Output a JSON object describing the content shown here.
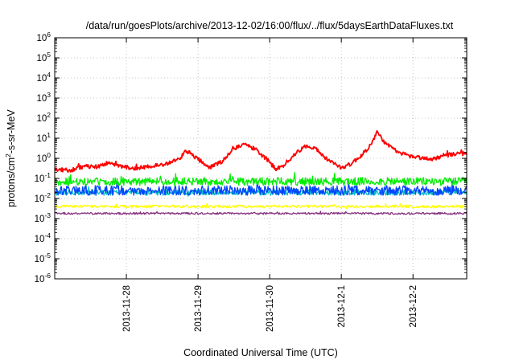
{
  "chart_data": {
    "type": "line",
    "title": "/data/run/goesPlots/archive/2013-12-02/16:00/flux/../flux/5daysEarthDataFluxes.txt",
    "xlabel": "Coordinated Universal Time (UTC)",
    "ylabel": {
      "base": "protons/cm",
      "sup": "2",
      "rest": "-s-sr-MeV"
    },
    "yscale": "log",
    "ylim": [
      1e-06,
      1000000.0
    ],
    "xlim": [
      "2013-11-27 00:00",
      "2013-12-02 18:00"
    ],
    "grid": true,
    "legend": "none",
    "y_ticks": [
      {
        "base": "10",
        "exp": "-6",
        "value": 1e-06
      },
      {
        "base": "10",
        "exp": "-5",
        "value": 1e-05
      },
      {
        "base": "10",
        "exp": "-4",
        "value": 0.0001
      },
      {
        "base": "10",
        "exp": "-3",
        "value": 0.001
      },
      {
        "base": "10",
        "exp": "-2",
        "value": 0.01
      },
      {
        "base": "10",
        "exp": "-1",
        "value": 0.1
      },
      {
        "base": "10",
        "exp": "0",
        "value": 1
      },
      {
        "base": "10",
        "exp": "1",
        "value": 10
      },
      {
        "base": "10",
        "exp": "2",
        "value": 100
      },
      {
        "base": "10",
        "exp": "3",
        "value": 1000
      },
      {
        "base": "10",
        "exp": "4",
        "value": 10000
      },
      {
        "base": "10",
        "exp": "5",
        "value": 100000
      },
      {
        "base": "10",
        "exp": "6",
        "value": 1000000
      }
    ],
    "x_ticks": [
      {
        "label": "2013-11-28",
        "value": "2013-11-28 00:00"
      },
      {
        "label": "2013-11-29",
        "value": "2013-11-29 00:00"
      },
      {
        "label": "2013-11-30",
        "value": "2013-11-30 00:00"
      },
      {
        "label": "2013-12-1",
        "value": "2013-12-01 00:00"
      },
      {
        "label": "2013-12-2",
        "value": "2013-12-02 00:00"
      }
    ],
    "series": [
      {
        "color": "#ff0000",
        "noise": 0.1,
        "points": [
          [
            "2013-11-27 00:00",
            0.28
          ],
          [
            "2013-11-27 05:00",
            0.25
          ],
          [
            "2013-11-27 10:00",
            0.4
          ],
          [
            "2013-11-27 14:00",
            0.38
          ],
          [
            "2013-11-27 18:00",
            0.6
          ],
          [
            "2013-11-27 22:00",
            0.4
          ],
          [
            "2013-11-28 02:00",
            0.32
          ],
          [
            "2013-11-28 06:00",
            0.35
          ],
          [
            "2013-11-28 10:00",
            0.45
          ],
          [
            "2013-11-28 14:00",
            0.55
          ],
          [
            "2013-11-28 18:00",
            1.0
          ],
          [
            "2013-11-28 20:00",
            2.5
          ],
          [
            "2013-11-29 00:00",
            0.9
          ],
          [
            "2013-11-29 04:00",
            0.35
          ],
          [
            "2013-11-29 08:00",
            0.7
          ],
          [
            "2013-11-29 12:00",
            3.0
          ],
          [
            "2013-11-29 15:00",
            5.0
          ],
          [
            "2013-11-29 19:00",
            3.0
          ],
          [
            "2013-11-29 23:00",
            0.9
          ],
          [
            "2013-11-30 02:00",
            0.3
          ],
          [
            "2013-11-30 05:00",
            0.4
          ],
          [
            "2013-11-30 08:00",
            1.5
          ],
          [
            "2013-11-30 12:00",
            4.0
          ],
          [
            "2013-11-30 15:00",
            3.5
          ],
          [
            "2013-11-30 18:00",
            1.2
          ],
          [
            "2013-11-30 21:00",
            0.6
          ],
          [
            "2013-12-01 00:00",
            0.35
          ],
          [
            "2013-12-01 03:00",
            0.5
          ],
          [
            "2013-12-01 07:00",
            1.5
          ],
          [
            "2013-12-01 10:00",
            5.0
          ],
          [
            "2013-12-01 12:00",
            20.0
          ],
          [
            "2013-12-01 15:00",
            5.0
          ],
          [
            "2013-12-01 19:00",
            2.0
          ],
          [
            "2013-12-02 00:00",
            1.2
          ],
          [
            "2013-12-02 06:00",
            0.9
          ],
          [
            "2013-12-02 12:00",
            1.5
          ],
          [
            "2013-12-02 18:00",
            1.8
          ]
        ]
      },
      {
        "color": "#00ee00",
        "noise": 0.2,
        "points": [
          [
            "2013-11-27 00:00",
            0.07
          ],
          [
            "2013-12-02 18:00",
            0.07
          ]
        ]
      },
      {
        "color": "#00c0c0",
        "noise": 0.14,
        "points": [
          [
            "2013-11-27 00:00",
            0.02
          ],
          [
            "2013-12-02 18:00",
            0.02
          ]
        ]
      },
      {
        "color": "#0044ff",
        "noise": 0.24,
        "points": [
          [
            "2013-11-27 00:00",
            0.025
          ],
          [
            "2013-12-02 18:00",
            0.025
          ]
        ]
      },
      {
        "color": "#ffff00",
        "noise": 0.07,
        "points": [
          [
            "2013-11-27 00:00",
            0.004
          ],
          [
            "2013-12-02 18:00",
            0.004
          ]
        ]
      },
      {
        "color": "#883380",
        "noise": 0.05,
        "points": [
          [
            "2013-11-27 00:00",
            0.0018
          ],
          [
            "2013-12-02 18:00",
            0.0018
          ]
        ]
      }
    ]
  }
}
